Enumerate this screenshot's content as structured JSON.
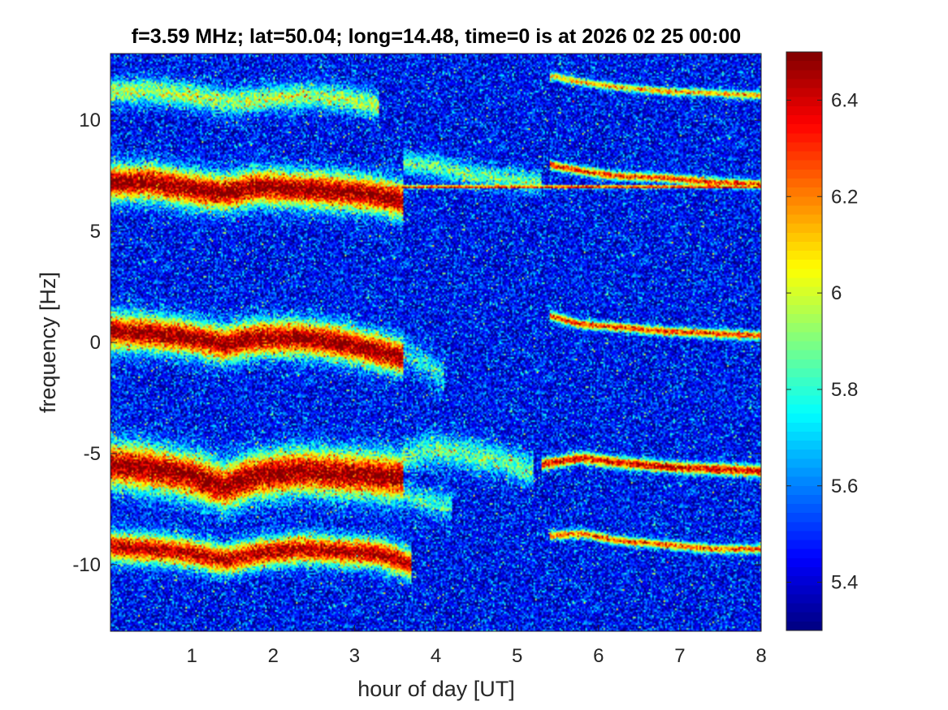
{
  "chart_data": {
    "type": "heatmap",
    "title": "f=3.59 MHz;  lat=50.04; long=14.48, time=0 is at 2026 02 25 00:00",
    "xlabel": "hour of day [UT]",
    "ylabel": "frequency [Hz]",
    "xlim": [
      0,
      8
    ],
    "ylim": [
      -13,
      13
    ],
    "x_ticks": [
      1,
      2,
      3,
      4,
      5,
      6,
      7,
      8
    ],
    "x_tick_labels": [
      "1",
      "2",
      "3",
      "4",
      "5",
      "6",
      "7",
      "8"
    ],
    "y_ticks": [
      10,
      5,
      0,
      -5,
      -10
    ],
    "y_tick_labels": [
      "10",
      "5",
      "0",
      "-5",
      "-10"
    ],
    "colorbar": {
      "colormap": "jet",
      "clim": [
        5.3,
        6.5
      ],
      "ticks": [
        6.4,
        6.2,
        6.0,
        5.8,
        5.6,
        5.4
      ],
      "tick_labels": [
        "6.4",
        "6.2",
        "6",
        "5.8",
        "5.6",
        "5.4"
      ]
    },
    "background_level": 5.45,
    "noise_level": 0.12,
    "bands": [
      {
        "path": [
          [
            0,
            11.3
          ],
          [
            0.5,
            11.3
          ],
          [
            1,
            11.1
          ],
          [
            1.5,
            10.8
          ],
          [
            2,
            11.0
          ],
          [
            2.5,
            11.1
          ],
          [
            3,
            10.9
          ],
          [
            3.3,
            10.6
          ]
        ],
        "width": 0.4,
        "peak": 5.95
      },
      {
        "path": [
          [
            5.4,
            12.0
          ],
          [
            5.8,
            11.7
          ],
          [
            6.2,
            11.5
          ],
          [
            6.8,
            11.3
          ],
          [
            7.5,
            11.2
          ],
          [
            8,
            11.1
          ]
        ],
        "width": 0.12,
        "peak": 6.15
      },
      {
        "path": [
          [
            0,
            7.2
          ],
          [
            0.5,
            7.2
          ],
          [
            1,
            6.9
          ],
          [
            1.4,
            6.7
          ],
          [
            1.8,
            7.0
          ],
          [
            2.3,
            6.9
          ],
          [
            2.8,
            6.8
          ],
          [
            3.3,
            6.6
          ],
          [
            3.6,
            6.4
          ]
        ],
        "width": 0.55,
        "peak": 6.5
      },
      {
        "path": [
          [
            3.2,
            7.0
          ],
          [
            8,
            7.0
          ]
        ],
        "width": 0.05,
        "peak": 6.45
      },
      {
        "path": [
          [
            3.6,
            8.1
          ],
          [
            4.0,
            7.9
          ],
          [
            4.5,
            7.5
          ],
          [
            5.0,
            7.3
          ],
          [
            5.3,
            7.2
          ]
        ],
        "width": 0.35,
        "peak": 5.85
      },
      {
        "path": [
          [
            5.4,
            8.0
          ],
          [
            5.8,
            7.7
          ],
          [
            6.2,
            7.5
          ],
          [
            6.8,
            7.4
          ],
          [
            7.4,
            7.2
          ],
          [
            8,
            7.1
          ]
        ],
        "width": 0.14,
        "peak": 6.3
      },
      {
        "path": [
          [
            0,
            0.5
          ],
          [
            0.5,
            0.4
          ],
          [
            1,
            0.2
          ],
          [
            1.4,
            -0.1
          ],
          [
            1.8,
            0.2
          ],
          [
            2.3,
            0.2
          ],
          [
            2.8,
            0.0
          ],
          [
            3.3,
            -0.4
          ],
          [
            3.6,
            -0.7
          ]
        ],
        "width": 0.55,
        "peak": 6.5
      },
      {
        "path": [
          [
            3.6,
            -0.5
          ],
          [
            3.9,
            -1.0
          ],
          [
            4.1,
            -1.5
          ]
        ],
        "width": 0.5,
        "peak": 5.75
      },
      {
        "path": [
          [
            5.4,
            1.2
          ],
          [
            5.8,
            0.8
          ],
          [
            6.2,
            0.7
          ],
          [
            6.8,
            0.5
          ],
          [
            7.4,
            0.4
          ],
          [
            8,
            0.3
          ]
        ],
        "width": 0.14,
        "peak": 6.3
      },
      {
        "path": [
          [
            0,
            -5.5
          ],
          [
            0.5,
            -5.7
          ],
          [
            1,
            -6.0
          ],
          [
            1.4,
            -6.5
          ],
          [
            1.8,
            -6.0
          ],
          [
            2.3,
            -5.8
          ],
          [
            2.8,
            -5.9
          ],
          [
            3.3,
            -6.0
          ],
          [
            3.6,
            -6.1
          ]
        ],
        "width": 0.7,
        "peak": 6.5
      },
      {
        "path": [
          [
            3.6,
            -5.2
          ],
          [
            3.9,
            -4.8
          ],
          [
            4.3,
            -5.0
          ],
          [
            4.8,
            -5.3
          ],
          [
            5.2,
            -5.8
          ]
        ],
        "width": 0.5,
        "peak": 5.85
      },
      {
        "path": [
          [
            3.6,
            -6.8
          ],
          [
            3.9,
            -7.2
          ],
          [
            4.2,
            -7.4
          ]
        ],
        "width": 0.4,
        "peak": 5.8
      },
      {
        "path": [
          [
            5.3,
            -5.5
          ],
          [
            5.8,
            -5.2
          ],
          [
            6.2,
            -5.4
          ],
          [
            6.8,
            -5.6
          ],
          [
            7.4,
            -5.7
          ],
          [
            8,
            -5.8
          ]
        ],
        "width": 0.18,
        "peak": 6.4
      },
      {
        "path": [
          [
            0,
            -9.2
          ],
          [
            0.5,
            -9.3
          ],
          [
            1,
            -9.5
          ],
          [
            1.4,
            -9.8
          ],
          [
            1.8,
            -9.5
          ],
          [
            2.3,
            -9.3
          ],
          [
            2.8,
            -9.4
          ],
          [
            3.3,
            -9.5
          ],
          [
            3.7,
            -10.0
          ]
        ],
        "width": 0.45,
        "peak": 6.45
      },
      {
        "path": [
          [
            5.4,
            -8.7
          ],
          [
            5.8,
            -8.6
          ],
          [
            6.2,
            -8.9
          ],
          [
            6.8,
            -9.1
          ],
          [
            7.4,
            -9.3
          ],
          [
            8,
            -9.3
          ]
        ],
        "width": 0.14,
        "peak": 6.25
      }
    ]
  }
}
